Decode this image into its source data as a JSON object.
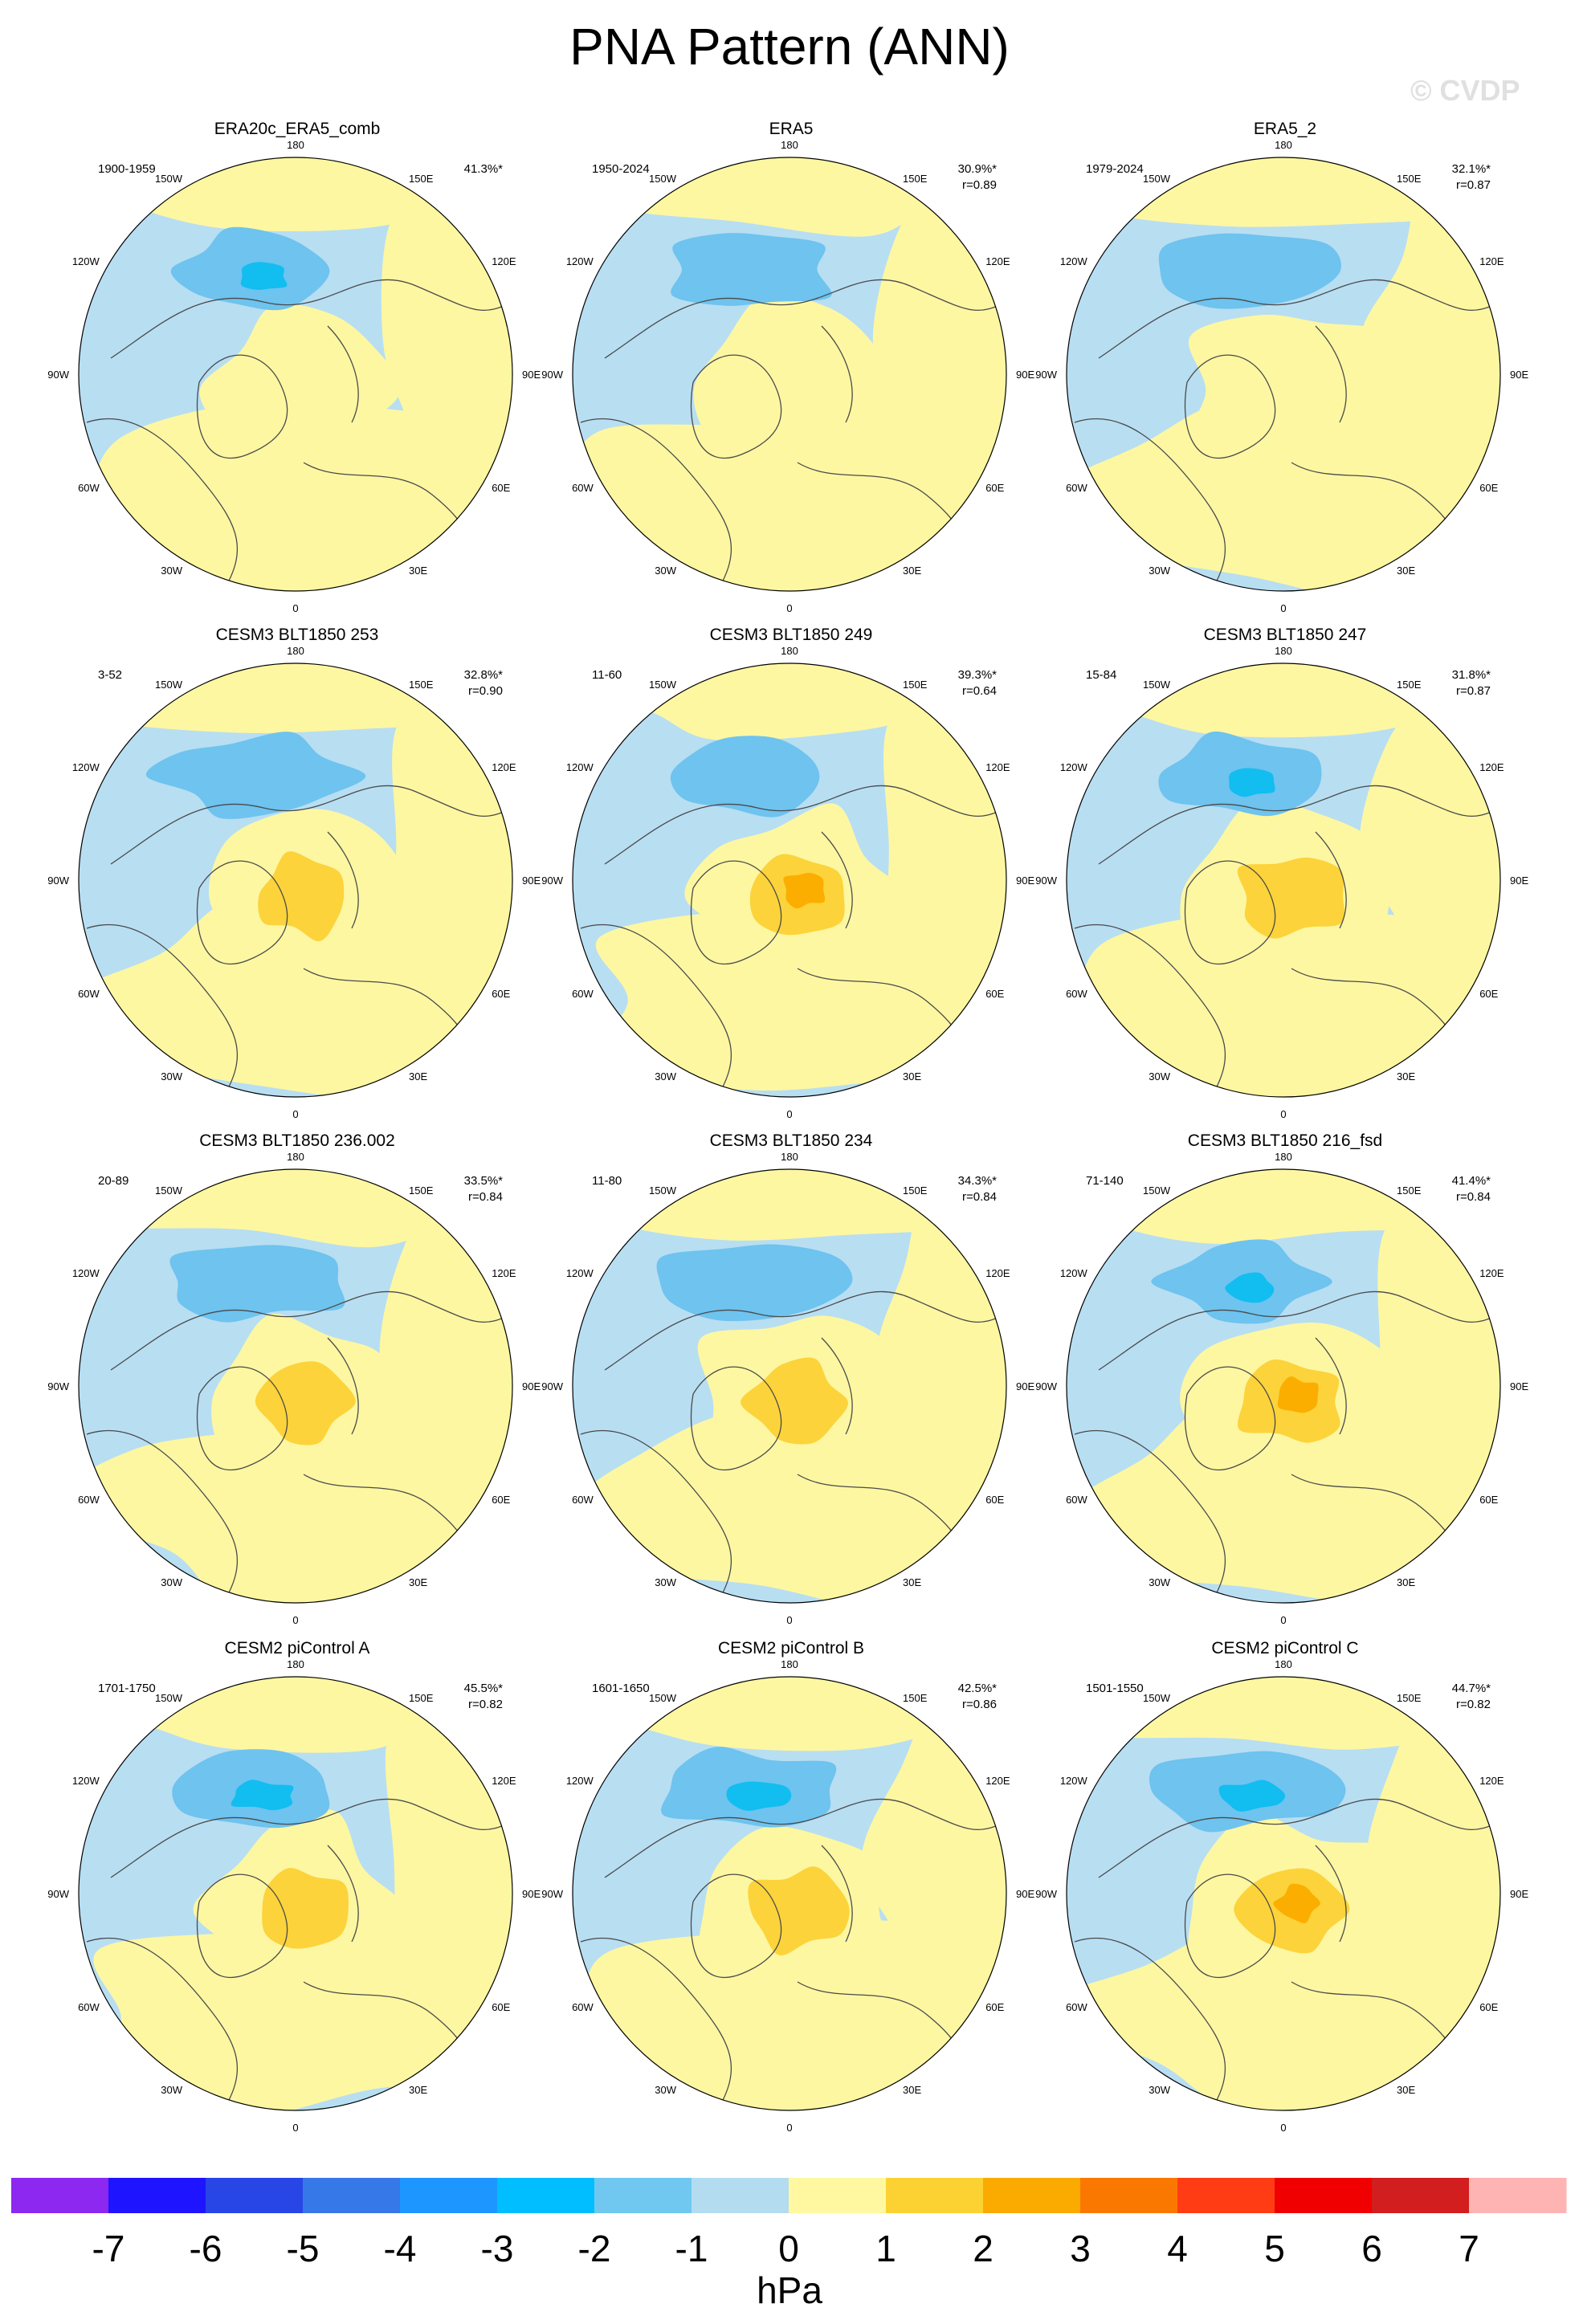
{
  "title": "PNA Pattern (ANN)",
  "watermark": "© CVDP",
  "lon_labels": [
    "180",
    "150E",
    "120E",
    "90E",
    "60E",
    "30E",
    "0",
    "30W",
    "60W",
    "90W",
    "120W",
    "150W"
  ],
  "colors": {
    "neg_weak": "#b8def2",
    "neg_mod": "#6ec3ef",
    "neg_strong": "#12bdf0",
    "pos_weak": "#fdf7a2",
    "pos_mod": "#fcd33a",
    "pos_strong": "#fbae00",
    "coast": "#4a4a4a"
  },
  "panels": [
    {
      "title": "ERA20c_ERA5_comb",
      "years": "1900-1959",
      "pct": "41.3%*",
      "r": ""
    },
    {
      "title": "ERA5",
      "years": "1950-2024",
      "pct": "30.9%*",
      "r": "r=0.89"
    },
    {
      "title": "ERA5_2",
      "years": "1979-2024",
      "pct": "32.1%*",
      "r": "r=0.87"
    },
    {
      "title": "CESM3 BLT1850 253",
      "years": "3-52",
      "pct": "32.8%*",
      "r": "r=0.90"
    },
    {
      "title": "CESM3 BLT1850 249",
      "years": "11-60",
      "pct": "39.3%*",
      "r": "r=0.64"
    },
    {
      "title": "CESM3 BLT1850 247",
      "years": "15-84",
      "pct": "31.8%*",
      "r": "r=0.87"
    },
    {
      "title": "CESM3 BLT1850 236.002",
      "years": "20-89",
      "pct": "33.5%*",
      "r": "r=0.84"
    },
    {
      "title": "CESM3 BLT1850 234",
      "years": "11-80",
      "pct": "34.3%*",
      "r": "r=0.84"
    },
    {
      "title": "CESM3 BLT1850 216_fsd",
      "years": "71-140",
      "pct": "41.4%*",
      "r": "r=0.84"
    },
    {
      "title": "CESM2 piControl A",
      "years": "1701-1750",
      "pct": "45.5%*",
      "r": "r=0.82"
    },
    {
      "title": "CESM2 piControl B",
      "years": "1601-1650",
      "pct": "42.5%*",
      "r": "r=0.86"
    },
    {
      "title": "CESM2 piControl C",
      "years": "1501-1550",
      "pct": "44.7%*",
      "r": "r=0.82"
    }
  ],
  "colorbar": {
    "unit": "hPa",
    "ticks": [
      "-7",
      "-6",
      "-5",
      "-4",
      "-3",
      "-2",
      "-1",
      "0",
      "1",
      "2",
      "3",
      "4",
      "5",
      "6",
      "7"
    ],
    "colors": [
      "#8c28f0",
      "#1e14ff",
      "#2846e6",
      "#3778e8",
      "#1e96ff",
      "#00beff",
      "#70c8f0",
      "#b4dcf0",
      "#fff8a0",
      "#fcd232",
      "#fbaa00",
      "#fb7800",
      "#ff3c14",
      "#f00000",
      "#d21e1e",
      "#ffb4b4"
    ]
  }
}
